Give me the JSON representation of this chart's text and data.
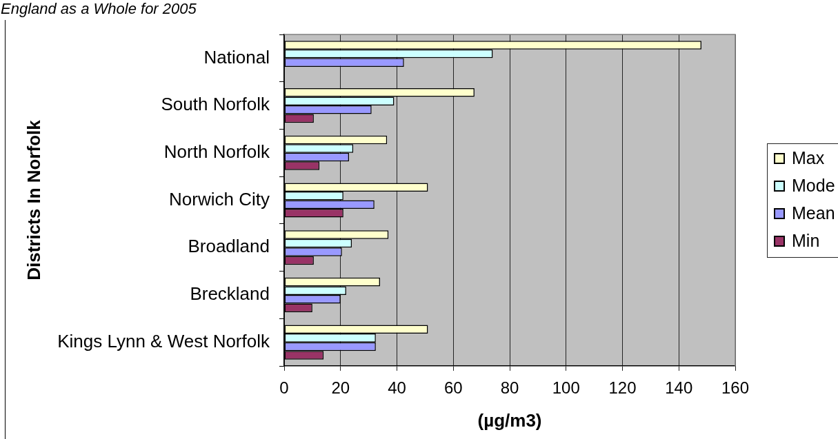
{
  "chart_data": {
    "type": "bar",
    "orientation": "horizontal",
    "title": "England as a Whole for 2005",
    "xlabel": "(µg/m3)",
    "ylabel": "Districts In Norfolk",
    "categories": [
      "National",
      "South Norfolk",
      "North Norfolk",
      "Norwich City",
      "Broadland",
      "Breckland",
      "Kings Lynn & West Norfolk"
    ],
    "series": [
      {
        "name": "Max",
        "color": "#ffffcc",
        "values": [
          148,
          67.5,
          36.5,
          51,
          37,
          34,
          51
        ]
      },
      {
        "name": "Mode",
        "color": "#ccffff",
        "values": [
          74,
          39,
          24.5,
          21,
          24,
          22,
          32.5
        ]
      },
      {
        "name": "Mean",
        "color": "#9999ff",
        "values": [
          42.5,
          31,
          23,
          32,
          20.5,
          20,
          32.5
        ]
      },
      {
        "name": "Min",
        "color": "#993366",
        "values": [
          null,
          10.5,
          12.5,
          21,
          10.5,
          10,
          14
        ]
      }
    ],
    "xlim": [
      0,
      160
    ],
    "xticks": [
      0,
      20,
      40,
      60,
      80,
      100,
      120,
      140,
      160
    ],
    "grid": "x",
    "legend": "right"
  }
}
